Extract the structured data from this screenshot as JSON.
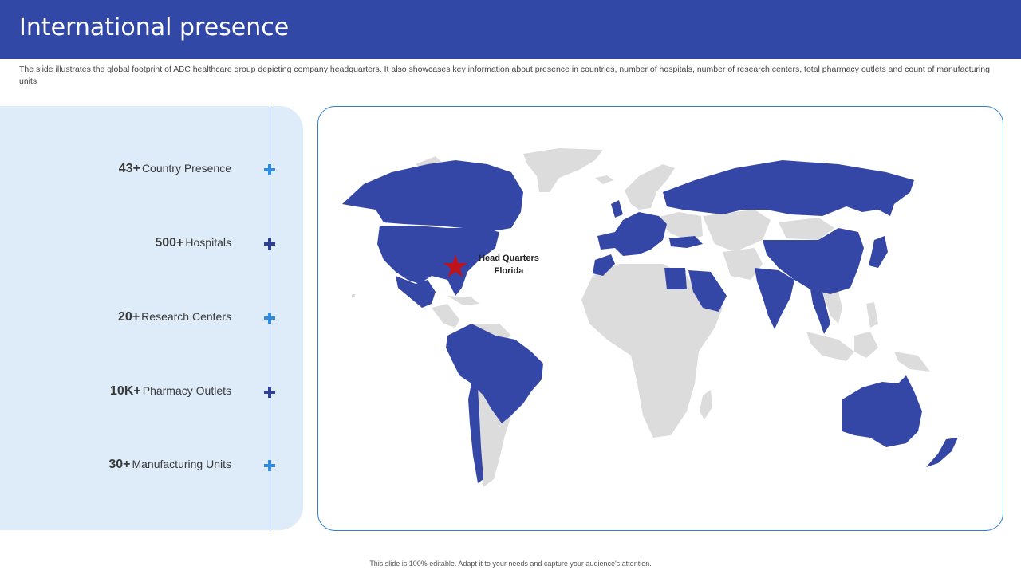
{
  "title": "International presence",
  "description": "The slide illustrates the global footprint of ABC healthcare group depicting company headquarters. It also showcases key information about presence in countries, number of hospitals, number of research centers, total pharmacy outlets and count of manufacturing units",
  "stats": [
    {
      "value": "43+",
      "label": "Country Presence",
      "marker_color": "#2f8ce0"
    },
    {
      "value": "500+",
      "label": "Hospitals",
      "marker_color": "#2f3f96"
    },
    {
      "value": "20+",
      "label": "Research Centers",
      "marker_color": "#2f8ce0"
    },
    {
      "value": "10K+",
      "label": "Pharmacy Outlets",
      "marker_color": "#2f3f96"
    },
    {
      "value": "30+",
      "label": "Manufacturing Units",
      "marker_color": "#2f8ce0"
    }
  ],
  "map": {
    "hq_line1": "Head Quarters",
    "hq_line2": "Florida",
    "presence_color": "#3547a6",
    "other_color": "#dcdcdc",
    "hq_marker_color": "#c0121b"
  },
  "footer": "This slide is 100% editable. Adapt it to your needs and capture your audience's attention."
}
